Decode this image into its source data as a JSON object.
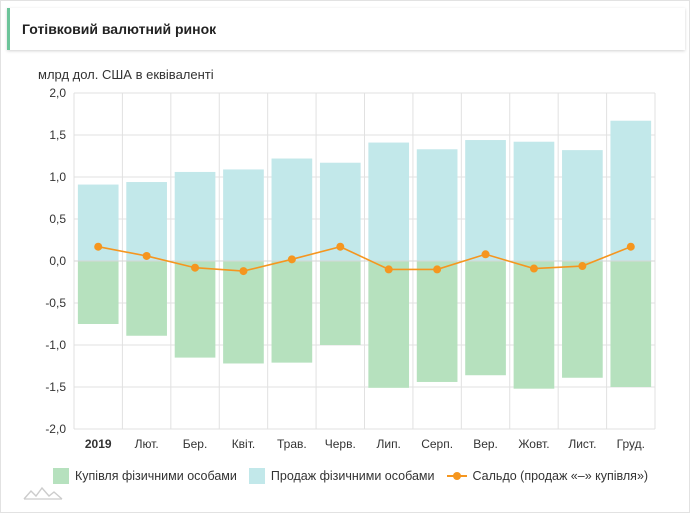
{
  "header": {
    "title": "Готівковий валютний ринок"
  },
  "colors": {
    "purchase": "#b6e1be",
    "sale": "#c2e8ea",
    "balance": "#f5961f",
    "grid": "#e1e1e1",
    "header_accent": "#6cc49a"
  },
  "icons": {
    "logo": "mountains-logo-icon"
  },
  "chart_data": {
    "type": "bar",
    "ylabel": "млрд дол. США в еквіваленті",
    "ylim": [
      -2.0,
      2.0
    ],
    "yticks": [
      "2,0",
      "1,5",
      "1,0",
      "0,5",
      "0,0",
      "-0,5",
      "-1,0",
      "-1,5",
      "-2,0"
    ],
    "ytick_values": [
      2.0,
      1.5,
      1.0,
      0.5,
      0.0,
      -0.5,
      -1.0,
      -1.5,
      -2.0
    ],
    "categories": [
      "2019",
      "Лют.",
      "Бер.",
      "Квіт.",
      "Трав.",
      "Черв.",
      "Лип.",
      "Серп.",
      "Вер.",
      "Жовт.",
      "Лист.",
      "Груд."
    ],
    "grid": true,
    "legend_position": "bottom",
    "series": [
      {
        "name": "Купівля фізичними особами",
        "kind": "bar",
        "values": [
          -0.75,
          -0.89,
          -1.15,
          -1.22,
          -1.21,
          -1.0,
          -1.51,
          -1.44,
          -1.36,
          -1.52,
          -1.39,
          -1.5
        ]
      },
      {
        "name": "Продаж фізичними особами",
        "kind": "bar",
        "values": [
          0.91,
          0.94,
          1.06,
          1.09,
          1.22,
          1.17,
          1.41,
          1.33,
          1.44,
          1.42,
          1.32,
          1.67
        ]
      },
      {
        "name": "Сальдо (продаж «–» купівля»)",
        "kind": "line",
        "values": [
          0.17,
          0.06,
          -0.08,
          -0.12,
          0.02,
          0.17,
          -0.1,
          -0.1,
          0.08,
          -0.09,
          -0.06,
          0.17
        ]
      }
    ]
  }
}
